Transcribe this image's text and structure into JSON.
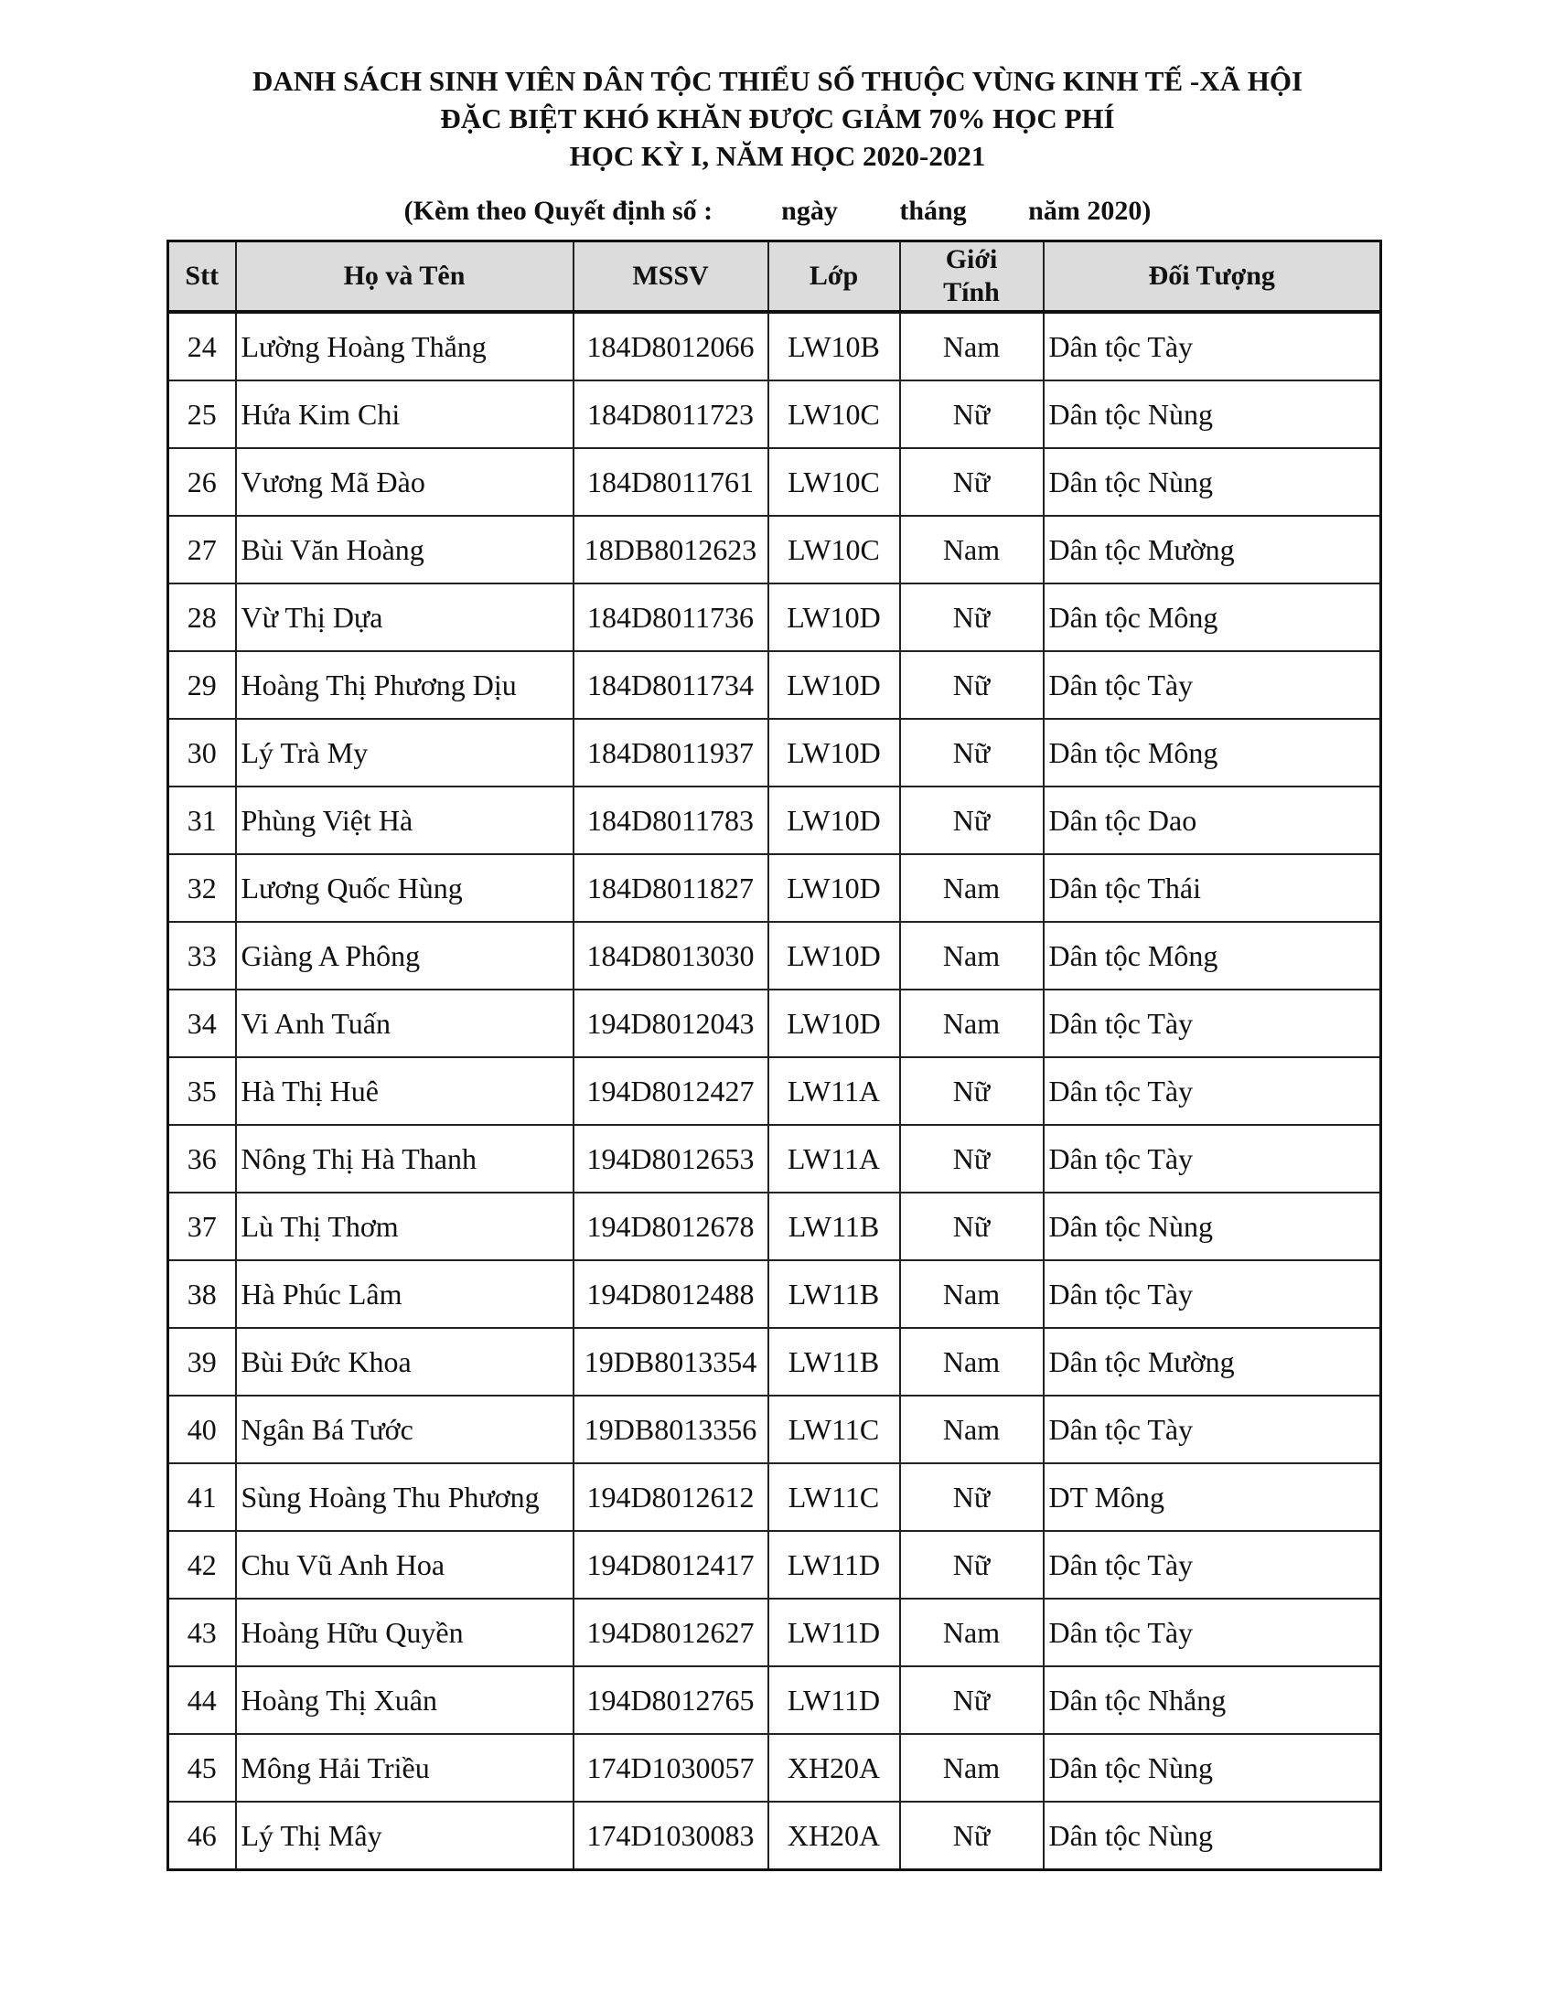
{
  "header": {
    "title_lines": [
      "DANH SÁCH SINH VIÊN DÂN TỘC THIỂU SỐ THUỘC VÙNG KINH TẾ -XÃ HỘI",
      "ĐẶC BIỆT KHÓ KHĂN ĐƯỢC GIẢM 70% HỌC PHÍ",
      "HỌC KỲ I, NĂM HỌC 2020-2021"
    ],
    "subtitle": "(Kèm theo Quyết định số :          ngày         tháng         năm 2020)"
  },
  "table": {
    "columns": [
      "Stt",
      "Họ và Tên",
      "MSSV",
      "Lớp",
      "Giới Tính",
      "Đối Tượng"
    ],
    "rows": [
      [
        "24",
        "Lường Hoàng Thắng",
        "184D8012066",
        "LW10B",
        "Nam",
        "Dân tộc Tày"
      ],
      [
        "25",
        "Hứa Kim Chi",
        "184D8011723",
        "LW10C",
        "Nữ",
        "Dân tộc Nùng"
      ],
      [
        "26",
        "Vương Mã Đào",
        "184D8011761",
        "LW10C",
        "Nữ",
        "Dân tộc Nùng"
      ],
      [
        "27",
        "Bùi Văn Hoàng",
        "18DB8012623",
        "LW10C",
        "Nam",
        "Dân tộc Mường"
      ],
      [
        "28",
        "Vừ Thị Dựa",
        "184D8011736",
        "LW10D",
        "Nữ",
        "Dân tộc Mông"
      ],
      [
        "29",
        "Hoàng Thị Phương Dịu",
        "184D8011734",
        "LW10D",
        "Nữ",
        "Dân tộc Tày"
      ],
      [
        "30",
        "Lý Trà My",
        "184D8011937",
        "LW10D",
        "Nữ",
        "Dân tộc Mông"
      ],
      [
        "31",
        "Phùng Việt Hà",
        "184D8011783",
        "LW10D",
        "Nữ",
        "Dân tộc Dao"
      ],
      [
        "32",
        "Lương Quốc Hùng",
        "184D8011827",
        "LW10D",
        "Nam",
        "Dân tộc Thái"
      ],
      [
        "33",
        "Giàng A Phông",
        "184D8013030",
        "LW10D",
        "Nam",
        "Dân tộc Mông"
      ],
      [
        "34",
        "Vi Anh Tuấn",
        "194D8012043",
        "LW10D",
        "Nam",
        "Dân tộc Tày"
      ],
      [
        "35",
        "Hà Thị Huê",
        "194D8012427",
        "LW11A",
        "Nữ",
        "Dân tộc Tày"
      ],
      [
        "36",
        "Nông Thị Hà Thanh",
        "194D8012653",
        "LW11A",
        "Nữ",
        "Dân tộc Tày"
      ],
      [
        "37",
        "Lù Thị Thơm",
        "194D8012678",
        "LW11B",
        "Nữ",
        "Dân tộc Nùng"
      ],
      [
        "38",
        "Hà Phúc Lâm",
        "194D8012488",
        "LW11B",
        "Nam",
        "Dân tộc Tày"
      ],
      [
        "39",
        "Bùi Đức Khoa",
        "19DB8013354",
        "LW11B",
        "Nam",
        "Dân tộc Mường"
      ],
      [
        "40",
        "Ngân Bá Tước",
        "19DB8013356",
        "LW11C",
        "Nam",
        "Dân tộc Tày"
      ],
      [
        "41",
        "Sùng Hoàng Thu Phương",
        "194D8012612",
        "LW11C",
        "Nữ",
        "DT Mông"
      ],
      [
        "42",
        "Chu Vũ Anh Hoa",
        "194D8012417",
        "LW11D",
        "Nữ",
        "Dân tộc Tày"
      ],
      [
        "43",
        "Hoàng Hữu Quyền",
        "194D8012627",
        "LW11D",
        "Nam",
        "Dân tộc Tày"
      ],
      [
        "44",
        "Hoàng Thị Xuân",
        "194D8012765",
        "LW11D",
        "Nữ",
        "Dân tộc Nhắng"
      ],
      [
        "45",
        "Mông Hải Triều",
        "174D1030057",
        "XH20A",
        "Nam",
        "Dân tộc Nùng"
      ],
      [
        "46",
        "Lý Thị Mây",
        "174D1030083",
        "XH20A",
        "Nữ",
        "Dân tộc Nùng"
      ]
    ]
  }
}
